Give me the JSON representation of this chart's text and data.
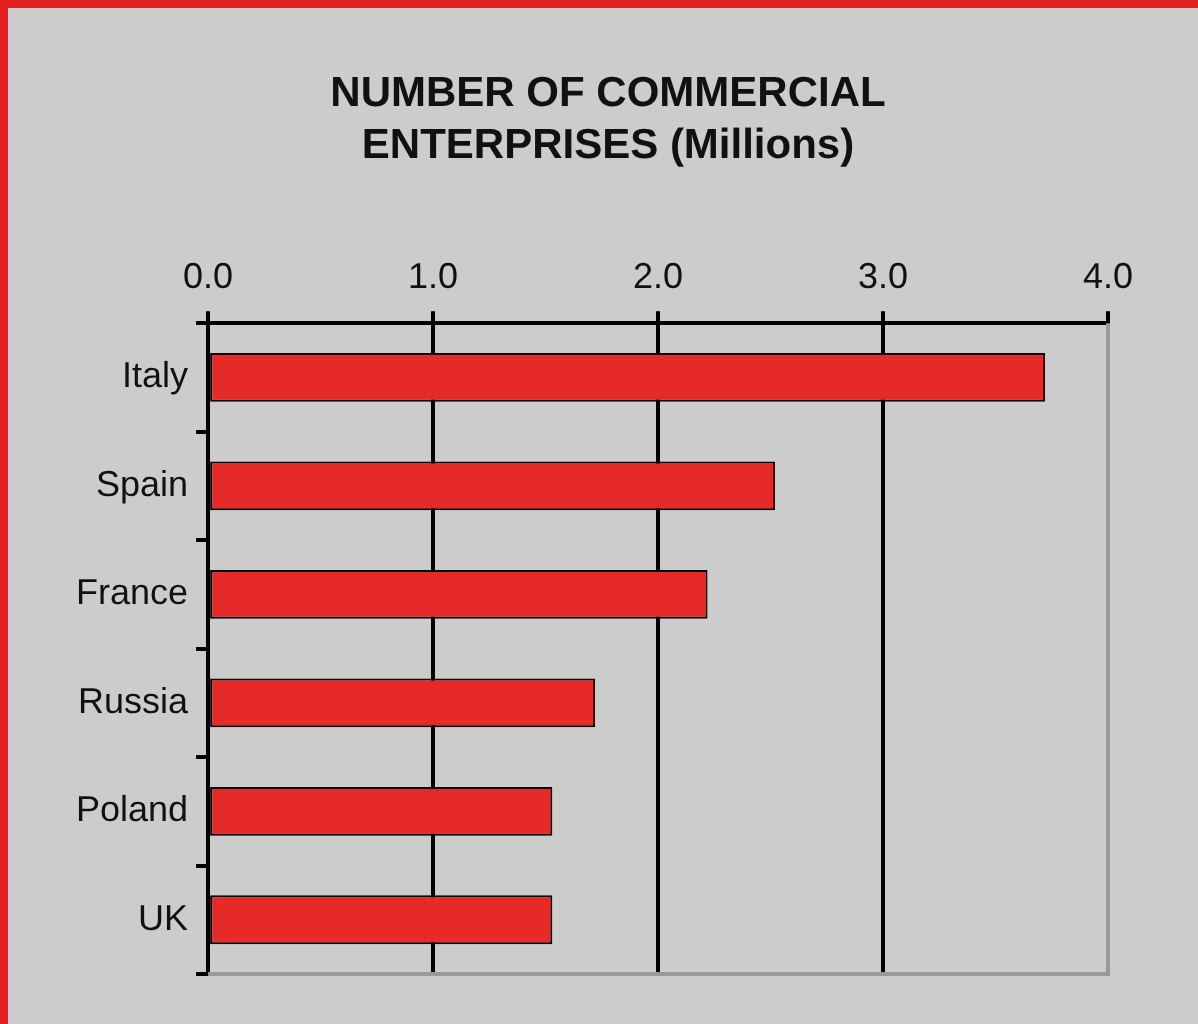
{
  "chart_data": {
    "type": "bar",
    "orientation": "horizontal",
    "title": "NUMBER OF COMMERCIAL ENTERPRISES (Millions)",
    "categories": [
      "Italy",
      "Spain",
      "France",
      "Russia",
      "Poland",
      "UK"
    ],
    "values": [
      3.72,
      2.52,
      2.22,
      1.72,
      1.53,
      1.53
    ],
    "color": "#e52a28",
    "xlim": [
      0,
      4
    ],
    "xticks": [
      {
        "value": 0,
        "label": "0.0"
      },
      {
        "value": 1,
        "label": "1.0"
      },
      {
        "value": 2,
        "label": "2.0"
      },
      {
        "value": 3,
        "label": "3.0"
      },
      {
        "value": 4,
        "label": "4.0"
      }
    ],
    "grid": "x",
    "legend": false
  }
}
